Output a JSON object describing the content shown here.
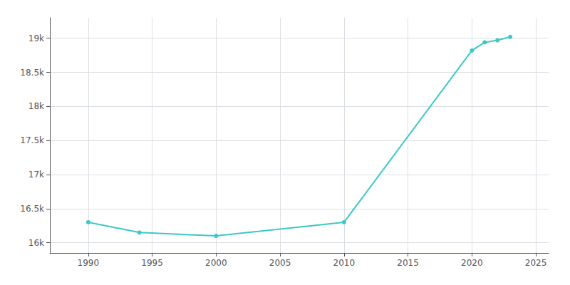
{
  "chart_data": {
    "type": "line",
    "x": [
      1990,
      1994,
      2000,
      2010,
      2020,
      2021,
      2022,
      2023
    ],
    "values": [
      16300,
      16150,
      16100,
      16300,
      18820,
      18940,
      18970,
      19020
    ],
    "color": "#3cc8c8",
    "marker": "circle",
    "xlim": [
      1987,
      2026
    ],
    "xticks": [
      1990,
      1995,
      2000,
      2005,
      2010,
      2015,
      2020,
      2025
    ],
    "ylim": [
      15850,
      19300
    ],
    "yticks": [
      {
        "value": 16000,
        "label": "16k"
      },
      {
        "value": 16500,
        "label": "16.5k"
      },
      {
        "value": 17000,
        "label": "17k"
      },
      {
        "value": 17500,
        "label": "17.5k"
      },
      {
        "value": 18000,
        "label": "18k"
      },
      {
        "value": 18500,
        "label": "18.5k"
      },
      {
        "value": 19000,
        "label": "19k"
      }
    ],
    "grid": true
  }
}
